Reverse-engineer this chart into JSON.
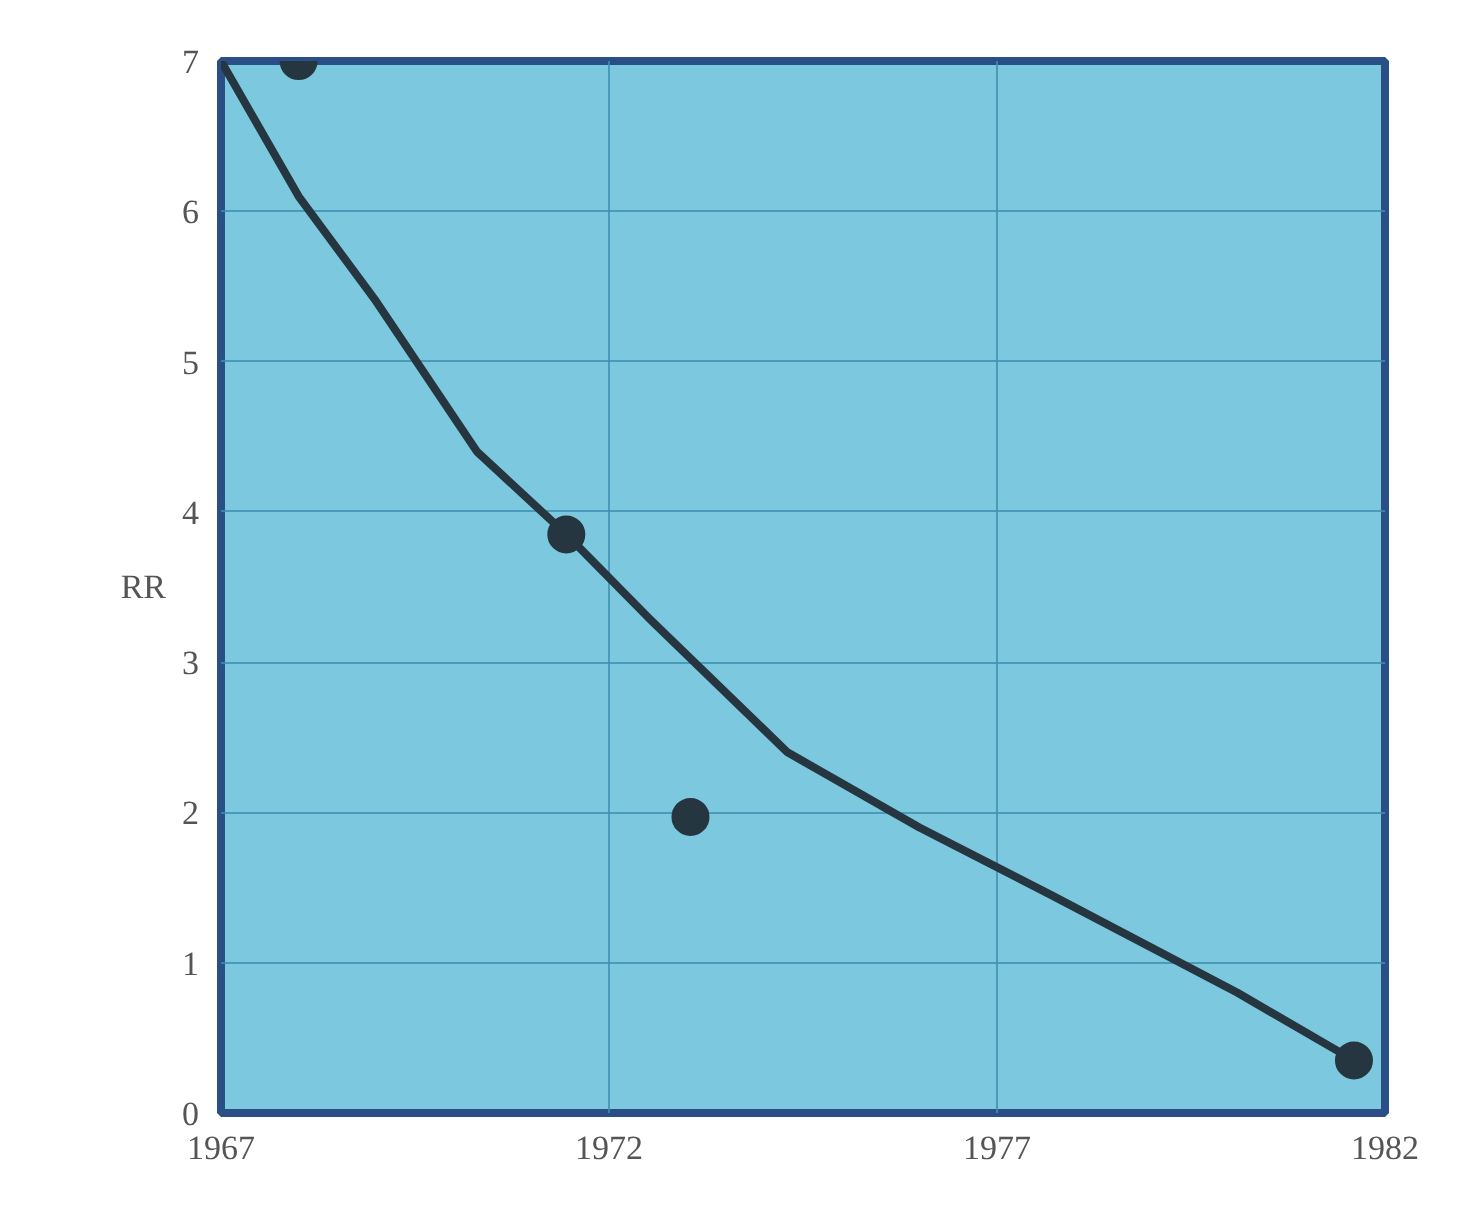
{
  "chart_data": {
    "type": "scatter",
    "ylabel": "RR",
    "xlim": [
      1967,
      1982
    ],
    "ylim": [
      0,
      7
    ],
    "xticks": [
      1967,
      1972,
      1977,
      1982
    ],
    "yticks": [
      0,
      1,
      2,
      3,
      4,
      5,
      6,
      7
    ],
    "grid": true,
    "marker": "circle",
    "series": [
      {
        "type": "line",
        "color": "#263640",
        "x": [
          1967,
          1968,
          1969,
          1970.3,
          1971.45,
          1972.5,
          1974.3,
          1976,
          1977.7,
          1980.1,
          1981.6
        ],
        "values": [
          7,
          6.1,
          5.4,
          4.4,
          3.85,
          3.3,
          2.4,
          1.9,
          1.45,
          0.8,
          0.35
        ],
        "line_style": "solid",
        "marker": "none"
      },
      {
        "type": "scatter",
        "color": "#263640",
        "x": [
          1968,
          1971.45,
          1973.05,
          1981.6
        ],
        "values": [
          7,
          3.85,
          1.97,
          0.35
        ]
      }
    ]
  }
}
